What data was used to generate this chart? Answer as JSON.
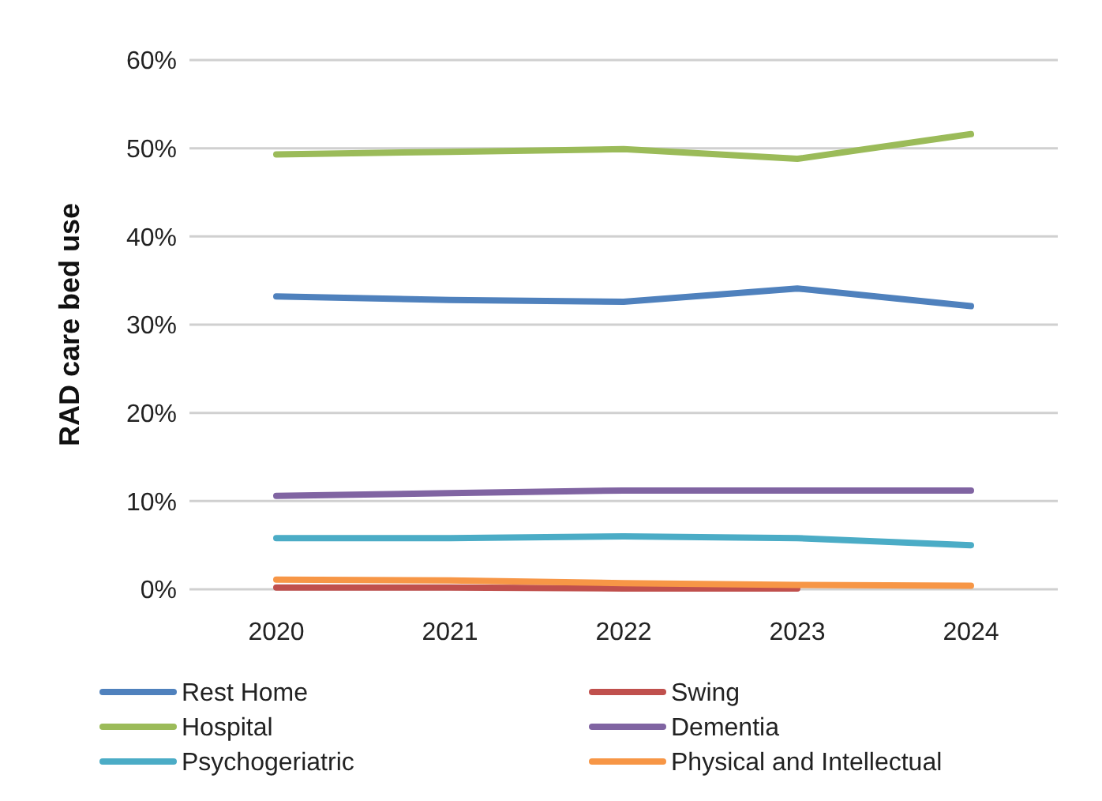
{
  "chart_data": {
    "type": "line",
    "ylabel": "RAD care bed use",
    "categories": [
      "2020",
      "2021",
      "2022",
      "2023",
      "2024"
    ],
    "ylim": [
      0,
      60
    ],
    "yticks": [
      {
        "value": 0,
        "label": "0%"
      },
      {
        "value": 10,
        "label": "10%"
      },
      {
        "value": 20,
        "label": "20%"
      },
      {
        "value": 30,
        "label": "30%"
      },
      {
        "value": 40,
        "label": "40%"
      },
      {
        "value": 50,
        "label": "50%"
      },
      {
        "value": 60,
        "label": "60%"
      }
    ],
    "grid": "y",
    "legend": "bottom",
    "marker": "none",
    "line_style": "solid",
    "series": [
      {
        "name": "Rest Home",
        "color": "#4f81bd",
        "values": [
          33.2,
          32.8,
          32.6,
          34.1,
          32.1
        ]
      },
      {
        "name": "Swing",
        "color": "#c0504d",
        "values": [
          0.2,
          0.2,
          0.1,
          0.1,
          null
        ]
      },
      {
        "name": "Hospital",
        "color": "#9bbb59",
        "values": [
          49.3,
          49.6,
          49.9,
          48.8,
          51.6
        ]
      },
      {
        "name": "Dementia",
        "color": "#8064a2",
        "values": [
          10.6,
          10.9,
          11.2,
          11.2,
          11.2
        ]
      },
      {
        "name": "Psychogeriatric",
        "color": "#4bacc6",
        "values": [
          5.8,
          5.8,
          6.0,
          5.8,
          5.0
        ]
      },
      {
        "name": "Physical and Intellectual",
        "color": "#f79646",
        "values": [
          1.1,
          1.0,
          0.7,
          0.5,
          0.4
        ]
      }
    ]
  }
}
